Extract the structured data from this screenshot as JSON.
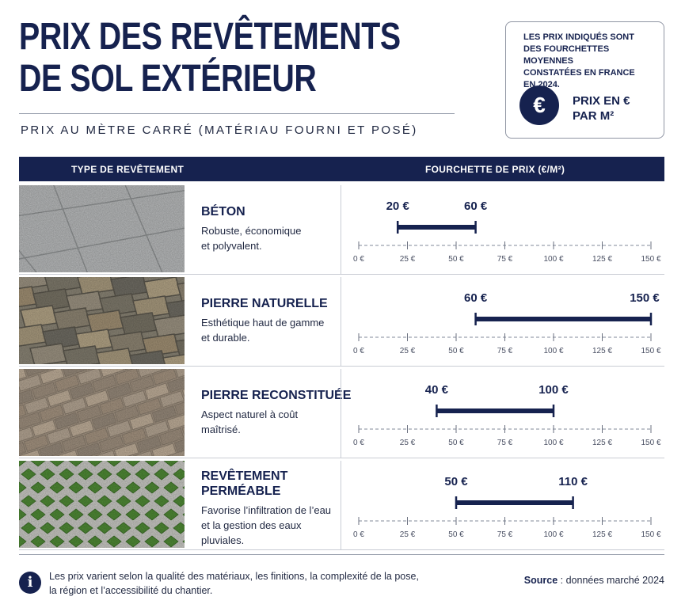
{
  "title_line1": "PRIX DES REVÊTEMENTS",
  "title_line2": "DE SOL EXTÉRIEUR",
  "subtitle": "PRIX AU MÈTRE CARRÉ (MATÉRIAU FOURNI ET POSÉ)",
  "info_box": {
    "line1": "LES PRIX INDIQUÉS SONT",
    "line2": "DES FOURCHETTES MOYENNES",
    "line3": "CONSTATÉES EN FRANCE",
    "line4": "EN 2024.",
    "icon_symbol": "€",
    "label_line1": "PRIX EN €",
    "label_line2": "PAR M²"
  },
  "table_header": {
    "type_col": "TYPE DE REVÊTEMENT",
    "range_col": "FOURCHETTE DE PRIX (€/M²)"
  },
  "chart_data": {
    "type": "range-bar",
    "title": "PRIX DES REVÊTEMENTS DE SOL EXTÉRIEUR",
    "subtitle": "PRIX AU MÈTRE CARRÉ (MATÉRIAU FOURNI ET POSÉ)",
    "xlabel": "FOURCHETTE DE PRIX (€/M²)",
    "xlim": [
      0,
      150
    ],
    "ticks": [
      0,
      25,
      50,
      75,
      100,
      125,
      150
    ],
    "tick_labels": [
      "0 €",
      "25 €",
      "50 €",
      "75 €",
      "100 €",
      "125 €",
      "150 €"
    ],
    "bar_color": "#16224f",
    "items": [
      {
        "name_line1": "BÉTON",
        "name_line2": "",
        "desc_line1": "Robuste, économique",
        "desc_line2": "et polyvalent.",
        "desc_line3": "",
        "min": 20,
        "max": 60,
        "min_label": "20 €",
        "max_label": "60 €",
        "texture": "concrete"
      },
      {
        "name_line1": "PIERRE NATURELLE",
        "name_line2": "",
        "desc_line1": "Esthétique haut de gamme",
        "desc_line2": "et durable.",
        "desc_line3": "",
        "min": 60,
        "max": 150,
        "min_label": "60 €",
        "max_label": "150 €",
        "texture": "natural-stone"
      },
      {
        "name_line1": "PIERRE RECONSTITUÉE",
        "name_line2": "",
        "desc_line1": "Aspect naturel à coût",
        "desc_line2": "maîtrisé.",
        "desc_line3": "",
        "min": 40,
        "max": 100,
        "min_label": "40 €",
        "max_label": "100 €",
        "texture": "reconstituted-stone"
      },
      {
        "name_line1": "REVÊTEMENT",
        "name_line2": "PERMÉABLE",
        "desc_line1": "Favorise l’infiltration de l’eau",
        "desc_line2": "et la gestion des eaux",
        "desc_line3": "pluviales.",
        "min": 50,
        "max": 110,
        "min_label": "50 €",
        "max_label": "110 €",
        "texture": "permeable-grass"
      }
    ]
  },
  "footer": {
    "icon_symbol": "i",
    "note_line1": "Les prix varient selon la qualité des matériaux, les finitions, la complexité de la pose,",
    "note_line2": "la région et l’accessibilité du chantier.",
    "source_label": "Source",
    "source_text": " : données marché 2024"
  }
}
